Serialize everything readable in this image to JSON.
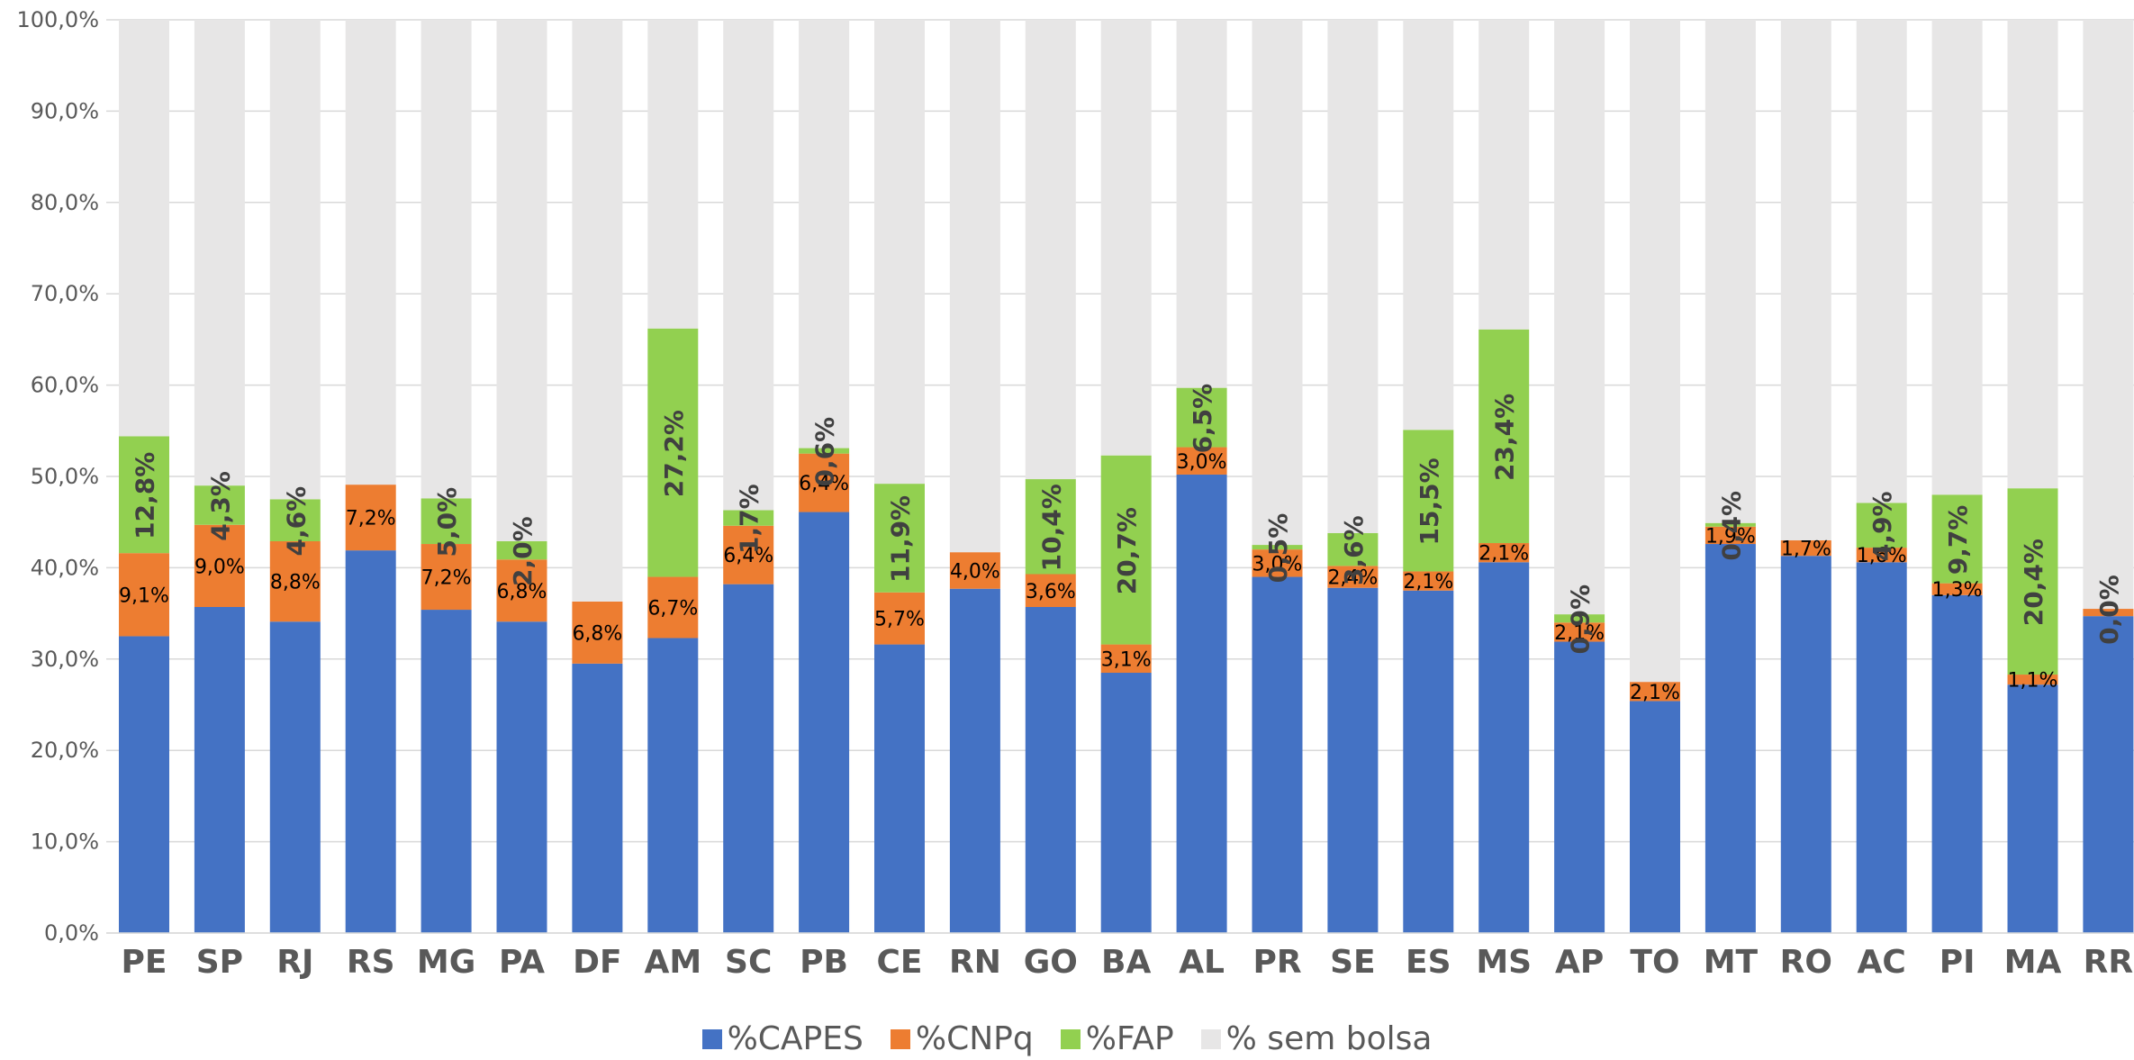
{
  "chart_data": {
    "type": "bar",
    "stacked": true,
    "percent_stacked": true,
    "categories": [
      "PE",
      "SP",
      "RJ",
      "RS",
      "MG",
      "PA",
      "DF",
      "AM",
      "SC",
      "PB",
      "CE",
      "RN",
      "GO",
      "BA",
      "AL",
      "PR",
      "SE",
      "ES",
      "MS",
      "AP",
      "TO",
      "MT",
      "RO",
      "AC",
      "PI",
      "MA",
      "RR"
    ],
    "ylim": [
      0,
      100
    ],
    "yticks": [
      "0,0%",
      "10,0%",
      "20,0%",
      "30,0%",
      "40,0%",
      "50,0%",
      "60,0%",
      "70,0%",
      "80,0%",
      "90,0%",
      "100,0%"
    ],
    "grid": true,
    "legend_position": "bottom",
    "series": [
      {
        "name": "%CAPES",
        "color": "#4472C4",
        "values": [
          32.5,
          35.7,
          34.1,
          41.9,
          35.4,
          34.1,
          29.5,
          32.3,
          38.2,
          46.1,
          31.6,
          37.7,
          35.7,
          28.5,
          50.2,
          39.0,
          37.8,
          37.5,
          40.6,
          31.9,
          25.4,
          42.6,
          41.3,
          40.6,
          37.0,
          27.2,
          34.7
        ],
        "labels": [
          "",
          "",
          "",
          "",
          "",
          "",
          "",
          "",
          "",
          "",
          "",
          "",
          "",
          "",
          "",
          "",
          "",
          "",
          "",
          "",
          "",
          "",
          "",
          "",
          "",
          "",
          ""
        ]
      },
      {
        "name": "%CNPq",
        "color": "#ED7D31",
        "values": [
          9.1,
          9.0,
          8.8,
          7.2,
          7.2,
          6.8,
          6.8,
          6.7,
          6.4,
          6.4,
          5.7,
          4.0,
          3.6,
          3.1,
          3.0,
          3.0,
          2.4,
          2.1,
          2.1,
          2.1,
          2.1,
          1.9,
          1.7,
          1.6,
          1.3,
          1.1,
          0.8
        ],
        "labels": [
          "9,1%",
          "9,0%",
          "8,8%",
          "7,2%",
          "7,2%",
          "6,8%",
          "6,8%",
          "6,7%",
          "6,4%",
          "6,4%",
          "5,7%",
          "4,0%",
          "3,6%",
          "3,1%",
          "3,0%",
          "3,0%",
          "2,4%",
          "2,1%",
          "2,1%",
          "2,1%",
          "2,1%",
          "1,9%",
          "1,7%",
          "1,6%",
          "1,3%",
          "1,1%",
          ""
        ]
      },
      {
        "name": "%FAP",
        "color": "#92D050",
        "values": [
          12.8,
          4.3,
          4.6,
          0,
          5.0,
          2.0,
          0,
          27.2,
          1.7,
          0.6,
          11.9,
          0,
          10.4,
          20.7,
          6.5,
          0.5,
          3.6,
          15.5,
          23.4,
          0.9,
          0,
          0.4,
          0,
          4.9,
          9.7,
          20.4,
          0.0
        ],
        "labels": [
          "12,8%",
          "4,3%",
          "4,6%",
          "",
          "5,0%",
          "2,0%",
          "",
          "27,2%",
          "1,7%",
          "0,6%",
          "11,9%",
          "",
          "10,4%",
          "20,7%",
          "6,5%",
          "0,5%",
          "3,6%",
          "15,5%",
          "23,4%",
          "0,9%",
          "",
          "0,4%",
          "",
          "4,9%",
          "9,7%",
          "20,4%",
          "0,0%"
        ]
      },
      {
        "name": "% sem bolsa",
        "color": "#E7E6E6",
        "values": [
          45.6,
          51.0,
          52.5,
          50.9,
          52.4,
          57.1,
          63.7,
          33.8,
          53.7,
          46.9,
          50.8,
          58.3,
          50.3,
          47.7,
          40.3,
          57.5,
          56.2,
          44.9,
          33.9,
          65.1,
          72.5,
          55.1,
          57.0,
          52.9,
          52.0,
          51.3,
          64.5
        ],
        "labels": [
          "",
          "",
          "",
          "",
          "",
          "",
          "",
          "",
          "",
          "",
          "",
          "",
          "",
          "",
          "",
          "",
          "",
          "",
          "",
          "",
          "",
          "",
          "",
          "",
          "",
          "",
          ""
        ]
      }
    ]
  }
}
